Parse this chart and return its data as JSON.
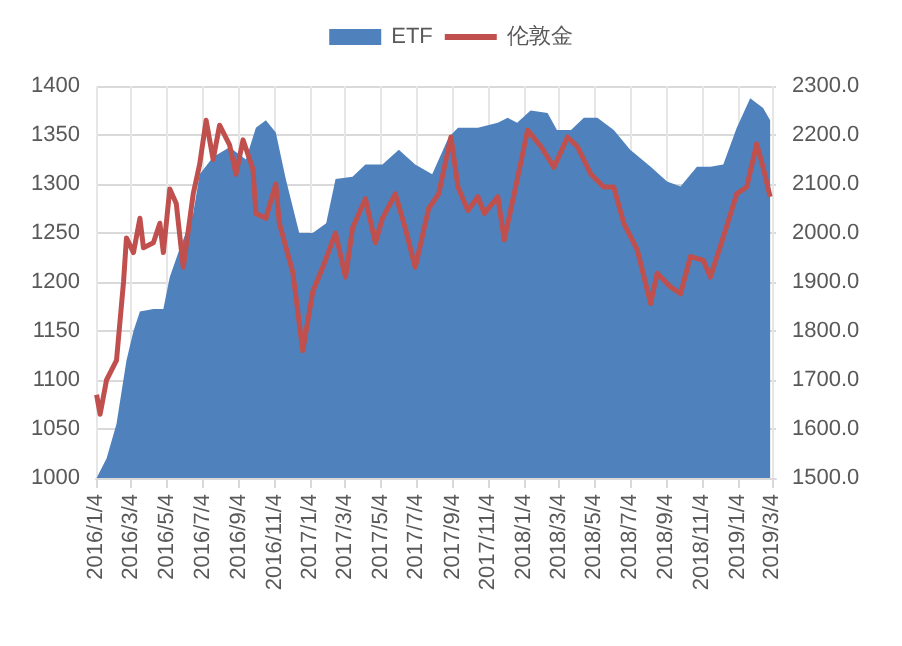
{
  "chart_data": {
    "type": "line",
    "xlim": [
      "2016-01-04",
      "2019-03-10"
    ],
    "xticks": [
      {
        "value": "2016-01-04",
        "label": "2016/1/4"
      },
      {
        "value": "2016-03-04",
        "label": "2016/3/4"
      },
      {
        "value": "2016-05-04",
        "label": "2016/5/4"
      },
      {
        "value": "2016-07-04",
        "label": "2016/7/4"
      },
      {
        "value": "2016-09-04",
        "label": "2016/9/4"
      },
      {
        "value": "2016-11-04",
        "label": "2016/11/4"
      },
      {
        "value": "2017-01-04",
        "label": "2017/1/4"
      },
      {
        "value": "2017-03-04",
        "label": "2017/3/4"
      },
      {
        "value": "2017-05-04",
        "label": "2017/5/4"
      },
      {
        "value": "2017-07-04",
        "label": "2017/7/4"
      },
      {
        "value": "2017-09-04",
        "label": "2017/9/4"
      },
      {
        "value": "2017-11-04",
        "label": "2017/11/4"
      },
      {
        "value": "2018-01-04",
        "label": "2018/1/4"
      },
      {
        "value": "2018-03-04",
        "label": "2018/3/4"
      },
      {
        "value": "2018-05-04",
        "label": "2018/5/4"
      },
      {
        "value": "2018-07-04",
        "label": "2018/7/4"
      },
      {
        "value": "2018-09-04",
        "label": "2018/9/4"
      },
      {
        "value": "2018-11-04",
        "label": "2018/11/4"
      },
      {
        "value": "2019-01-04",
        "label": "2019/1/4"
      },
      {
        "value": "2019-03-04",
        "label": "2019/3/4"
      }
    ],
    "ylim": [
      1000,
      1400
    ],
    "yticks": [
      1000,
      1050,
      1100,
      1150,
      1200,
      1250,
      1300,
      1350,
      1400
    ],
    "y2lim": [
      1500,
      2300
    ],
    "y2ticks": [
      {
        "value": 1500,
        "label": "1500.0"
      },
      {
        "value": 1600,
        "label": "1600.0"
      },
      {
        "value": 1700,
        "label": "1700.0"
      },
      {
        "value": 1800,
        "label": "1800.0"
      },
      {
        "value": 1900,
        "label": "1900.0"
      },
      {
        "value": 2000,
        "label": "2000.0"
      },
      {
        "value": 2100,
        "label": "2100.0"
      },
      {
        "value": 2200,
        "label": "2200.0"
      },
      {
        "value": 2300,
        "label": "2300.0"
      }
    ],
    "grid": true,
    "legend": "top",
    "series": [
      {
        "name": "ETF",
        "type": "area",
        "axis": "y2",
        "color": "#4f81bd",
        "x": [
          "2016-01-05",
          "2016-01-22",
          "2016-02-08",
          "2016-02-25",
          "2016-03-08",
          "2016-03-19",
          "2016-04-11",
          "2016-04-28",
          "2016-05-09",
          "2016-05-25",
          "2016-06-18",
          "2016-06-29",
          "2016-07-22",
          "2016-08-19",
          "2016-09-16",
          "2016-10-03",
          "2016-10-20",
          "2016-11-06",
          "2016-11-23",
          "2016-12-16",
          "2017-01-08",
          "2017-01-31",
          "2017-02-16",
          "2017-03-17",
          "2017-04-08",
          "2017-05-07",
          "2017-06-04",
          "2017-07-02",
          "2017-07-31",
          "2017-08-28",
          "2017-09-13",
          "2017-10-17",
          "2017-11-20",
          "2017-12-07",
          "2017-12-23",
          "2018-01-15",
          "2018-02-13",
          "2018-03-01",
          "2018-03-25",
          "2018-04-16",
          "2018-05-09",
          "2018-06-06",
          "2018-07-04",
          "2018-08-08",
          "2018-09-05",
          "2018-09-28",
          "2018-10-26",
          "2018-11-18",
          "2018-12-10",
          "2019-01-02",
          "2019-01-25",
          "2019-02-16",
          "2019-02-28"
        ],
        "values": [
          1500,
          1540,
          1610,
          1740,
          1800,
          1840,
          1845,
          1845,
          1910,
          1965,
          2040,
          2120,
          2155,
          2175,
          2150,
          2215,
          2230,
          2205,
          2110,
          2000,
          2000,
          2020,
          2110,
          2115,
          2140,
          2140,
          2170,
          2140,
          2120,
          2195,
          2215,
          2215,
          2225,
          2235,
          2225,
          2250,
          2245,
          2210,
          2210,
          2235,
          2235,
          2210,
          2170,
          2135,
          2105,
          2095,
          2135,
          2135,
          2140,
          2215,
          2275,
          2255,
          2230
        ]
      },
      {
        "name": "伦敦金",
        "color": "#c0504d",
        "x": [
          "2016-01-05",
          "2016-01-11",
          "2016-01-22",
          "2016-02-08",
          "2016-02-20",
          "2016-02-25",
          "2016-03-08",
          "2016-03-19",
          "2016-03-25",
          "2016-04-11",
          "2016-04-22",
          "2016-04-28",
          "2016-05-09",
          "2016-05-20",
          "2016-06-01",
          "2016-06-18",
          "2016-06-29",
          "2016-07-10",
          "2016-07-22",
          "2016-08-02",
          "2016-08-19",
          "2016-08-30",
          "2016-09-11",
          "2016-09-28",
          "2016-10-03",
          "2016-10-20",
          "2016-11-06",
          "2016-11-12",
          "2016-12-05",
          "2016-12-22",
          "2017-01-08",
          "2017-01-25",
          "2017-02-16",
          "2017-03-05",
          "2017-03-17",
          "2017-04-08",
          "2017-04-25",
          "2017-05-07",
          "2017-05-29",
          "2017-06-15",
          "2017-07-02",
          "2017-07-25",
          "2017-08-11",
          "2017-09-01",
          "2017-09-13",
          "2017-09-30",
          "2017-10-17",
          "2017-10-28",
          "2017-11-20",
          "2017-12-01",
          "2017-12-18",
          "2018-01-10",
          "2018-02-02",
          "2018-02-24",
          "2018-03-19",
          "2018-04-05",
          "2018-04-28",
          "2018-05-20",
          "2018-06-06",
          "2018-06-23",
          "2018-07-16",
          "2018-08-08",
          "2018-08-19",
          "2018-09-11",
          "2018-09-28",
          "2018-10-15",
          "2018-11-06",
          "2018-11-18",
          "2018-12-10",
          "2019-01-02",
          "2019-01-19",
          "2019-02-05",
          "2019-02-16",
          "2019-02-28"
        ],
        "values": [
          1085,
          1065,
          1100,
          1120,
          1200,
          1245,
          1230,
          1265,
          1235,
          1240,
          1260,
          1230,
          1295,
          1280,
          1215,
          1290,
          1320,
          1365,
          1325,
          1360,
          1340,
          1310,
          1345,
          1315,
          1270,
          1265,
          1300,
          1260,
          1210,
          1130,
          1190,
          1215,
          1250,
          1205,
          1255,
          1285,
          1240,
          1265,
          1290,
          1255,
          1215,
          1275,
          1290,
          1348,
          1297,
          1273,
          1287,
          1270,
          1287,
          1243,
          1290,
          1355,
          1338,
          1317,
          1348,
          1338,
          1310,
          1297,
          1297,
          1260,
          1233,
          1178,
          1209,
          1195,
          1188,
          1226,
          1222,
          1205,
          1246,
          1290,
          1297,
          1341,
          1317,
          1287
        ]
      }
    ]
  }
}
